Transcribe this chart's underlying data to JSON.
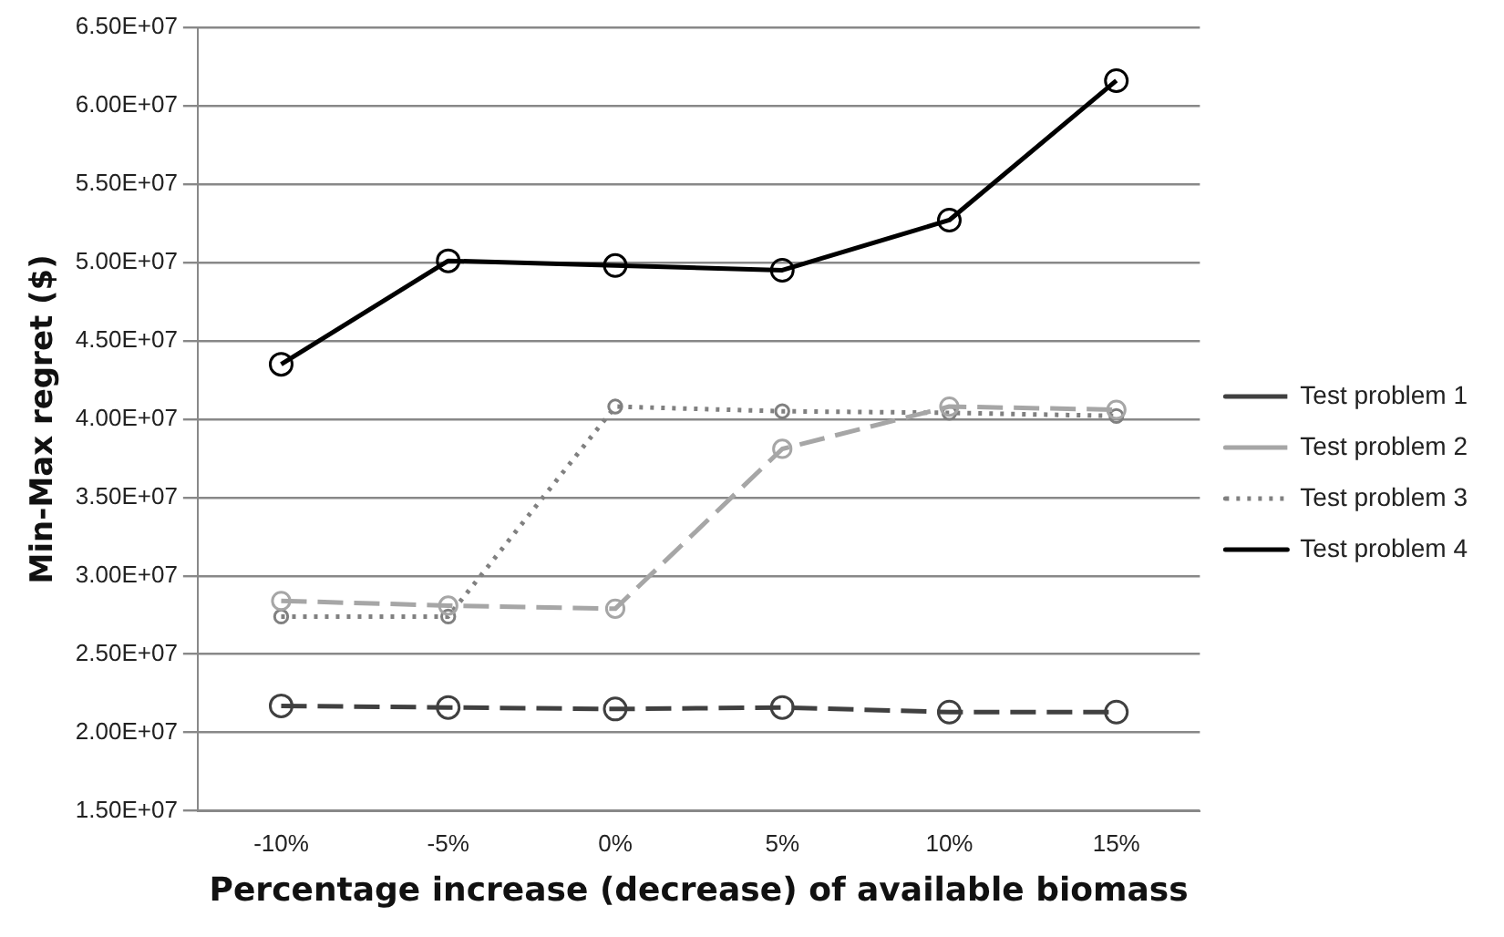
{
  "chart_data": {
    "type": "line",
    "xlabel": "Percentage increase (decrease) of available biomass",
    "ylabel": "Min-Max regret ($)",
    "categories": [
      "-10%",
      "-5%",
      "0%",
      "5%",
      "10%",
      "15%"
    ],
    "series": [
      {
        "name": "Test problem 1",
        "color": "#404040",
        "line_style": "dashed",
        "values": [
          21700000,
          21600000,
          21500000,
          21600000,
          21300000,
          21300000
        ]
      },
      {
        "name": "Test problem 2",
        "color": "#a6a6a6",
        "line_style": "dashed",
        "values": [
          28400000,
          28100000,
          27900000,
          38100000,
          40800000,
          40600000
        ]
      },
      {
        "name": "Test problem 3",
        "color": "#808080",
        "line_style": "dotted",
        "values": [
          27400000,
          27400000,
          40800000,
          40500000,
          40400000,
          40200000
        ]
      },
      {
        "name": "Test problem 4",
        "color": "#000000",
        "line_style": "solid",
        "values": [
          43500000,
          50100000,
          49800000,
          49500000,
          52700000,
          61600000
        ]
      }
    ],
    "ylim": [
      15000000,
      65000000
    ],
    "yticks": [
      {
        "value": 15000000,
        "label": "1.50E+07"
      },
      {
        "value": 20000000,
        "label": "2.00E+07"
      },
      {
        "value": 25000000,
        "label": "2.50E+07"
      },
      {
        "value": 30000000,
        "label": "3.00E+07"
      },
      {
        "value": 35000000,
        "label": "3.50E+07"
      },
      {
        "value": 40000000,
        "label": "4.00E+07"
      },
      {
        "value": 45000000,
        "label": "4.50E+07"
      },
      {
        "value": 50000000,
        "label": "5.00E+07"
      },
      {
        "value": 55000000,
        "label": "5.50E+07"
      },
      {
        "value": 60000000,
        "label": "6.00E+07"
      },
      {
        "value": 65000000,
        "label": "6.50E+07"
      }
    ],
    "grid": "y",
    "legend": "right",
    "marker": "circle"
  }
}
